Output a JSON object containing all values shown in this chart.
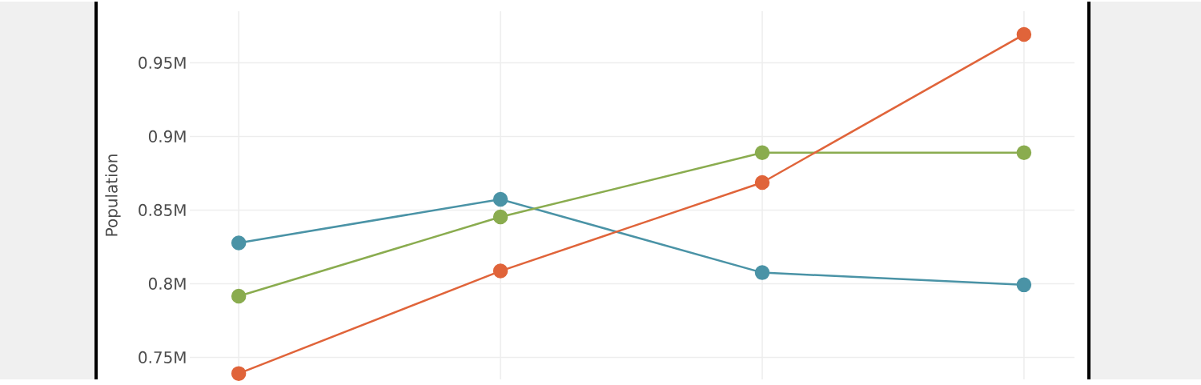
{
  "chart_data": {
    "type": "line",
    "ylabel": "Population",
    "categories": [
      null,
      null,
      null,
      null
    ],
    "series": [
      {
        "color": "#4a93a6",
        "values": [
          827700,
          857300,
          807500,
          799200
        ]
      },
      {
        "color": "#8aac4f",
        "values": [
          791500,
          845300,
          888900,
          888900
        ]
      },
      {
        "color": "#e0643a",
        "values": [
          739000,
          808600,
          868700,
          969200
        ]
      }
    ],
    "ylim": [
      735000,
      985000
    ],
    "yticks": [
      {
        "value": 750000,
        "label": "0.75M"
      },
      {
        "value": 800000,
        "label": "0.8M"
      },
      {
        "value": 850000,
        "label": "0.85M"
      },
      {
        "value": 900000,
        "label": "0.9M"
      },
      {
        "value": 950000,
        "label": "0.95M"
      }
    ],
    "grid": true,
    "marker": "circle",
    "line_style": "solid"
  }
}
